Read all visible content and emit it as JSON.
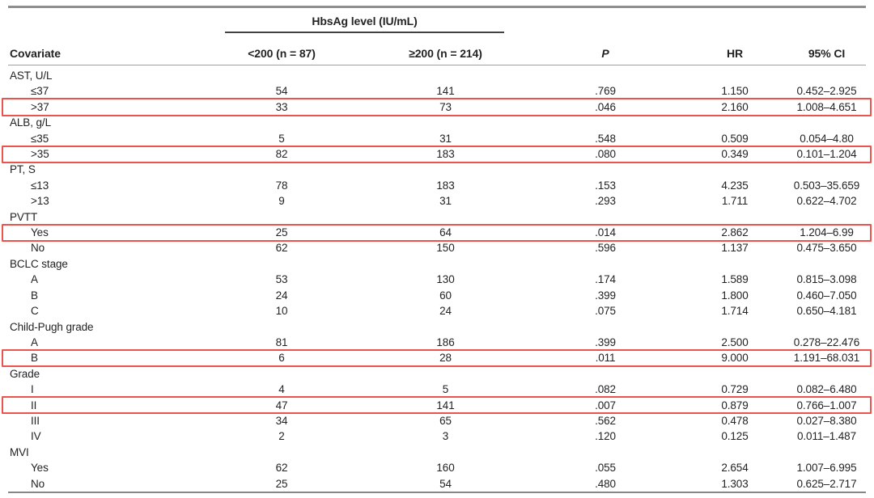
{
  "table": {
    "spanner": "HbsAg level (IU/mL)",
    "columns": [
      "Covariate",
      "<200 (n = 87)",
      "≥200 (n = 214)",
      "P",
      "HR",
      "95% CI"
    ],
    "highlight_color": "#e9544c",
    "sections": [
      {
        "label": "AST, U/L",
        "rows": [
          {
            "label": "≤37",
            "lt200": "54",
            "ge200": "141",
            "p": ".769",
            "hr": "1.150",
            "ci": "0.452–2.925",
            "highlight": false
          },
          {
            "label": ">37",
            "lt200": "33",
            "ge200": "73",
            "p": ".046",
            "hr": "2.160",
            "ci": "1.008–4.651",
            "highlight": true
          }
        ]
      },
      {
        "label": "ALB, g/L",
        "rows": [
          {
            "label": "≤35",
            "lt200": "5",
            "ge200": "31",
            "p": ".548",
            "hr": "0.509",
            "ci": "0.054–4.80",
            "highlight": false
          },
          {
            "label": ">35",
            "lt200": "82",
            "ge200": "183",
            "p": ".080",
            "hr": "0.349",
            "ci": "0.101–1.204",
            "highlight": true
          }
        ]
      },
      {
        "label": "PT, S",
        "rows": [
          {
            "label": "≤13",
            "lt200": "78",
            "ge200": "183",
            "p": ".153",
            "hr": "4.235",
            "ci": "0.503–35.659",
            "highlight": false
          },
          {
            "label": ">13",
            "lt200": "9",
            "ge200": "31",
            "p": ".293",
            "hr": "1.711",
            "ci": "0.622–4.702",
            "highlight": false
          }
        ]
      },
      {
        "label": "PVTT",
        "rows": [
          {
            "label": "Yes",
            "lt200": "25",
            "ge200": "64",
            "p": ".014",
            "hr": "2.862",
            "ci": "1.204–6.99",
            "highlight": true
          },
          {
            "label": "No",
            "lt200": "62",
            "ge200": "150",
            "p": ".596",
            "hr": "1.137",
            "ci": "0.475–3.650",
            "highlight": false
          }
        ]
      },
      {
        "label": "BCLC stage",
        "rows": [
          {
            "label": "A",
            "lt200": "53",
            "ge200": "130",
            "p": ".174",
            "hr": "1.589",
            "ci": "0.815–3.098",
            "highlight": false
          },
          {
            "label": "B",
            "lt200": "24",
            "ge200": "60",
            "p": ".399",
            "hr": "1.800",
            "ci": "0.460–7.050",
            "highlight": false
          },
          {
            "label": "C",
            "lt200": "10",
            "ge200": "24",
            "p": ".075",
            "hr": "1.714",
            "ci": "0.650–4.181",
            "highlight": false
          }
        ]
      },
      {
        "label": "Child-Pugh grade",
        "rows": [
          {
            "label": "A",
            "lt200": "81",
            "ge200": "186",
            "p": ".399",
            "hr": "2.500",
            "ci": "0.278–22.476",
            "highlight": false
          },
          {
            "label": "B",
            "lt200": "6",
            "ge200": "28",
            "p": ".011",
            "hr": "9.000",
            "ci": "1.191–68.031",
            "highlight": true
          }
        ]
      },
      {
        "label": "Grade",
        "rows": [
          {
            "label": "I",
            "lt200": "4",
            "ge200": "5",
            "p": ".082",
            "hr": "0.729",
            "ci": "0.082–6.480",
            "highlight": false
          },
          {
            "label": "II",
            "lt200": "47",
            "ge200": "141",
            "p": ".007",
            "hr": "0.879",
            "ci": "0.766–1.007",
            "highlight": true
          },
          {
            "label": "III",
            "lt200": "34",
            "ge200": "65",
            "p": ".562",
            "hr": "0.478",
            "ci": "0.027–8.380",
            "highlight": false
          },
          {
            "label": "IV",
            "lt200": "2",
            "ge200": "3",
            "p": ".120",
            "hr": "0.125",
            "ci": "0.011–1.487",
            "highlight": false
          }
        ]
      },
      {
        "label": "MVI",
        "rows": [
          {
            "label": "Yes",
            "lt200": "62",
            "ge200": "160",
            "p": ".055",
            "hr": "2.654",
            "ci": "1.007–6.995",
            "highlight": false
          },
          {
            "label": "No",
            "lt200": "25",
            "ge200": "54",
            "p": ".480",
            "hr": "1.303",
            "ci": "0.625–2.717",
            "highlight": false
          }
        ]
      }
    ]
  }
}
